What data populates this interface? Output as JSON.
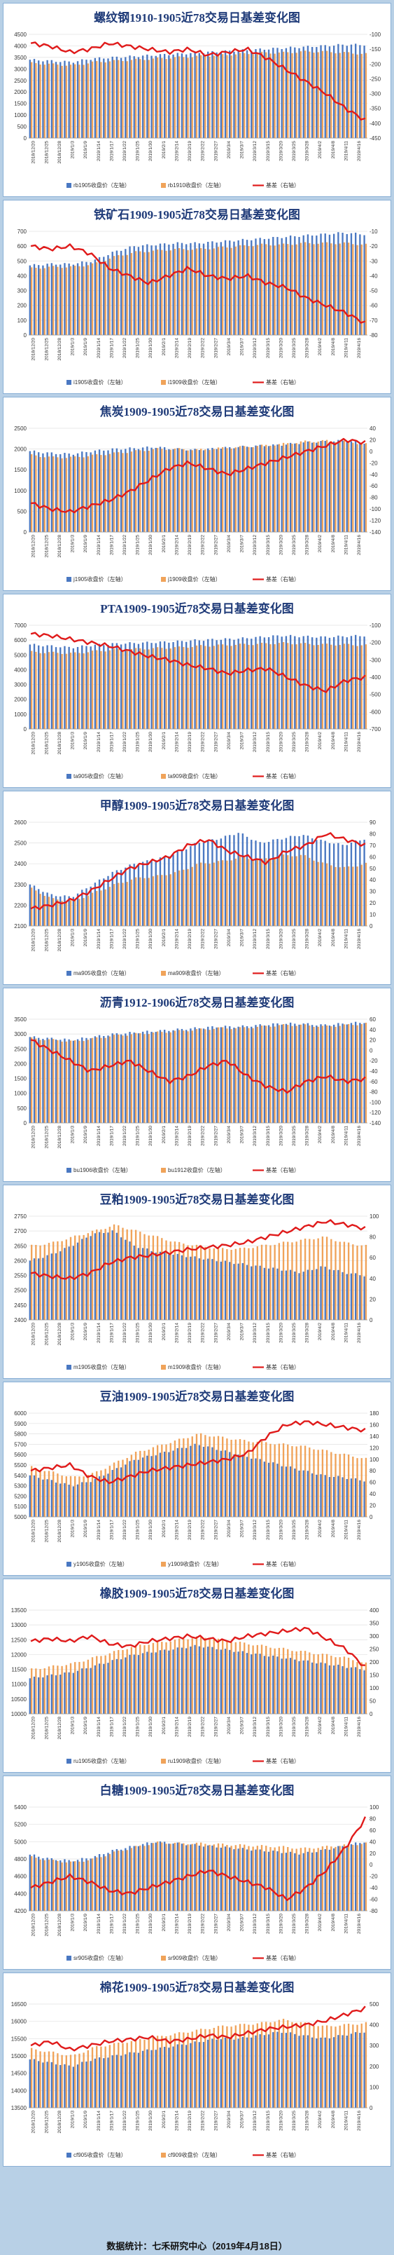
{
  "colors": {
    "bar1": "#4a78c2",
    "bar2": "#f0a35a",
    "line": "#e01a1a",
    "bg": "#b8d0e6"
  },
  "footer": "数据统计：七禾研究中心（2019年4月18日）",
  "dates": [
    "2018/12/20",
    "2018/12/25",
    "2018/12/28",
    "2019/1/3",
    "2019/1/9",
    "2019/1/14",
    "2019/1/17",
    "2019/1/22",
    "2019/1/25",
    "2019/1/30",
    "2019/2/1",
    "2019/2/14",
    "2019/2/19",
    "2019/2/22",
    "2019/2/27",
    "2019/3/4",
    "2019/3/7",
    "2019/3/12",
    "2019/3/15",
    "2019/3/20",
    "2019/3/25",
    "2019/3/28",
    "2019/4/2",
    "2019/4/8",
    "2019/4/11",
    "2019/4/16"
  ],
  "chart_data": [
    {
      "type": "bar",
      "title": "螺纹钢1910-1905近78交易日基差变化图",
      "ylim_left": [
        0,
        4500
      ],
      "left_ticks": [
        0,
        500,
        1000,
        1500,
        2000,
        2500,
        3000,
        3500,
        4000,
        4500
      ],
      "ylim_right": [
        -450,
        -100
      ],
      "right_ticks": [
        -100,
        -150,
        -200,
        -250,
        -300,
        -350,
        -400,
        -450
      ],
      "series": [
        {
          "name": "rb1905收盘价（左轴）",
          "anchors": [
            3400,
            3350,
            3300,
            3450,
            3500,
            3550,
            3600,
            3650,
            3700,
            3750,
            3800,
            3850,
            3900,
            3950,
            4000,
            4050,
            4050
          ]
        },
        {
          "name": "rb1910收盘价（左轴）",
          "anchors": [
            3250,
            3200,
            3150,
            3300,
            3350,
            3400,
            3450,
            3500,
            3550,
            3600,
            3650,
            3700,
            3700,
            3750,
            3750,
            3700,
            3650
          ]
        },
        {
          "name": "基差（右轴）",
          "anchors": [
            -130,
            -140,
            -160,
            -150,
            -130,
            -140,
            -150,
            -160,
            -150,
            -170,
            -160,
            -150,
            -180,
            -220,
            -260,
            -300,
            -350,
            -390
          ]
        }
      ]
    },
    {
      "type": "bar",
      "title": "铁矿石1909-1905近78交易日基差变化图",
      "ylim_left": [
        0,
        700
      ],
      "left_ticks": [
        0,
        100,
        200,
        300,
        400,
        500,
        600,
        700
      ],
      "ylim_right": [
        -80,
        -10
      ],
      "right_ticks": [
        -10,
        -20,
        -30,
        -40,
        -50,
        -60,
        -70,
        -80
      ],
      "series": [
        {
          "name": "i1905收盘价（左轴）",
          "anchors": [
            470,
            480,
            480,
            500,
            560,
            600,
            610,
            620,
            620,
            630,
            640,
            650,
            660,
            670,
            680,
            690,
            680
          ]
        },
        {
          "name": "i1909收盘价（左轴）",
          "anchors": [
            450,
            460,
            460,
            480,
            530,
            560,
            570,
            580,
            580,
            590,
            600,
            610,
            610,
            620,
            620,
            620,
            610
          ]
        },
        {
          "name": "基差（右轴）",
          "anchors": [
            -20,
            -22,
            -20,
            -25,
            -35,
            -40,
            -45,
            -40,
            -35,
            -40,
            -42,
            -40,
            -45,
            -48,
            -55,
            -60,
            -65,
            -72
          ]
        }
      ]
    },
    {
      "type": "bar",
      "title": "焦炭1909-1905近78交易日基差变化图",
      "ylim_left": [
        0,
        2500
      ],
      "left_ticks": [
        0,
        500,
        1000,
        1500,
        2000,
        2500
      ],
      "ylim_right": [
        -140,
        40
      ],
      "right_ticks": [
        40,
        20,
        0,
        -20,
        -40,
        -60,
        -80,
        -100,
        -120,
        -140
      ],
      "series": [
        {
          "name": "j1905收盘价（左轴）",
          "anchors": [
            1950,
            1900,
            1880,
            1950,
            2000,
            2020,
            2050,
            2000,
            1980,
            2020,
            2050,
            2080,
            2100,
            2150,
            2180,
            2200,
            2150
          ]
        },
        {
          "name": "j1909收盘价（左轴）",
          "anchors": [
            1850,
            1800,
            1800,
            1850,
            1900,
            1950,
            2000,
            2000,
            1980,
            2020,
            2050,
            2080,
            2120,
            2180,
            2200,
            2180,
            2120
          ]
        },
        {
          "name": "基差（右轴）",
          "anchors": [
            -90,
            -100,
            -105,
            -95,
            -85,
            -70,
            -50,
            -30,
            -20,
            -30,
            -40,
            -30,
            -20,
            -10,
            0,
            10,
            20,
            15
          ]
        }
      ]
    },
    {
      "type": "bar",
      "title": "PTA1909-1905近78交易日基差变化图",
      "ylim_left": [
        0,
        7000
      ],
      "left_ticks": [
        0,
        1000,
        2000,
        3000,
        4000,
        5000,
        6000,
        7000
      ],
      "ylim_right": [
        -700,
        -100
      ],
      "right_ticks": [
        -100,
        -200,
        -300,
        -400,
        -500,
        -600,
        -700
      ],
      "series": [
        {
          "name": "ta905收盘价（左轴）",
          "anchors": [
            5700,
            5600,
            5500,
            5650,
            5750,
            5800,
            5850,
            5900,
            6000,
            6050,
            6100,
            6200,
            6300,
            6250,
            6200,
            6250,
            6300
          ]
        },
        {
          "name": "ta909收盘价（左轴）",
          "anchors": [
            5200,
            5150,
            5100,
            5250,
            5350,
            5400,
            5450,
            5500,
            5600,
            5650,
            5700,
            5750,
            5800,
            5750,
            5700,
            5700,
            5650
          ]
        },
        {
          "name": "基差（右轴）",
          "anchors": [
            -150,
            -160,
            -180,
            -200,
            -220,
            -250,
            -280,
            -300,
            -330,
            -350,
            -380,
            -360,
            -350,
            -400,
            -450,
            -480,
            -420,
            -400
          ]
        }
      ]
    },
    {
      "type": "bar",
      "title": "甲醇1909-1905近78交易日基差变化图",
      "ylim_left": [
        2100,
        2600
      ],
      "left_ticks": [
        2100,
        2200,
        2300,
        2400,
        2500,
        2600
      ],
      "ylim_right": [
        0,
        90
      ],
      "right_ticks": [
        90,
        80,
        70,
        60,
        50,
        40,
        30,
        20,
        10,
        0
      ],
      "series": [
        {
          "name": "ma905收盘价（左轴）",
          "anchors": [
            2300,
            2250,
            2240,
            2300,
            2360,
            2400,
            2420,
            2450,
            2500,
            2520,
            2550,
            2500,
            2520,
            2540,
            2510,
            2490,
            2520
          ]
        },
        {
          "name": "ma909收盘价（左轴）",
          "anchors": [
            2280,
            2230,
            2220,
            2260,
            2300,
            2330,
            2340,
            2360,
            2400,
            2410,
            2430,
            2420,
            2440,
            2440,
            2400,
            2380,
            2400
          ]
        },
        {
          "name": "基差（右轴）",
          "anchors": [
            15,
            18,
            22,
            30,
            40,
            50,
            55,
            60,
            70,
            75,
            65,
            60,
            55,
            65,
            70,
            80,
            75,
            70
          ]
        }
      ]
    },
    {
      "type": "bar",
      "title": "沥青1912-1906近78交易日基差变化图",
      "ylim_left": [
        0,
        3500
      ],
      "left_ticks": [
        0,
        500,
        1000,
        1500,
        2000,
        2500,
        3000,
        3500
      ],
      "ylim_right": [
        -140,
        60
      ],
      "right_ticks": [
        60,
        40,
        20,
        0,
        -20,
        -40,
        -60,
        -80,
        -100,
        -120,
        -140
      ],
      "series": [
        {
          "name": "bu1906收盘价（左轴）",
          "anchors": [
            2900,
            2850,
            2800,
            2900,
            3000,
            3050,
            3100,
            3150,
            3200,
            3250,
            3250,
            3300,
            3350,
            3350,
            3300,
            3350,
            3400
          ]
        },
        {
          "name": "bu1912收盘价（左轴）",
          "anchors": [
            2850,
            2800,
            2750,
            2850,
            2950,
            3000,
            3050,
            3100,
            3150,
            3200,
            3200,
            3250,
            3300,
            3300,
            3250,
            3300,
            3350
          ]
        },
        {
          "name": "基差（右轴）",
          "anchors": [
            20,
            0,
            -20,
            -40,
            -30,
            -20,
            -40,
            -60,
            -50,
            -30,
            -20,
            -50,
            -70,
            -80,
            -60,
            -50,
            -60,
            -55
          ]
        }
      ]
    },
    {
      "type": "bar",
      "title": "豆粕1909-1905近78交易日基差变化图",
      "ylim_left": [
        2400,
        2750
      ],
      "left_ticks": [
        2400,
        2450,
        2500,
        2550,
        2600,
        2650,
        2700,
        2750
      ],
      "ylim_right": [
        0,
        100
      ],
      "right_ticks": [
        100,
        80,
        60,
        40,
        20,
        0
      ],
      "series": [
        {
          "name": "m1905收盘价（左轴）",
          "anchors": [
            2600,
            2620,
            2650,
            2690,
            2700,
            2650,
            2630,
            2620,
            2610,
            2600,
            2590,
            2580,
            2570,
            2560,
            2580,
            2560,
            2550
          ]
        },
        {
          "name": "m1909收盘价（左轴）",
          "anchors": [
            2650,
            2660,
            2680,
            2700,
            2720,
            2700,
            2680,
            2660,
            2650,
            2640,
            2640,
            2650,
            2660,
            2670,
            2680,
            2660,
            2650
          ]
        },
        {
          "name": "基差（右轴）",
          "anchors": [
            45,
            42,
            40,
            45,
            55,
            60,
            62,
            65,
            68,
            70,
            72,
            75,
            80,
            85,
            90,
            95,
            92,
            88
          ]
        }
      ]
    },
    {
      "type": "bar",
      "title": "豆油1909-1905近78交易日基差变化图",
      "ylim_left": [
        5000,
        6000
      ],
      "left_ticks": [
        5000,
        5100,
        5200,
        5300,
        5400,
        5500,
        5600,
        5700,
        5800,
        5900,
        6000
      ],
      "ylim_right": [
        0,
        180
      ],
      "right_ticks": [
        180,
        160,
        140,
        120,
        100,
        80,
        60,
        40,
        20,
        0
      ],
      "series": [
        {
          "name": "y1905收盘价（左轴）",
          "anchors": [
            5400,
            5350,
            5300,
            5350,
            5450,
            5550,
            5600,
            5650,
            5700,
            5650,
            5600,
            5550,
            5500,
            5450,
            5400,
            5380,
            5350
          ]
        },
        {
          "name": "y1909收盘价（左轴）",
          "anchors": [
            5480,
            5430,
            5380,
            5420,
            5520,
            5620,
            5680,
            5740,
            5800,
            5770,
            5740,
            5720,
            5700,
            5680,
            5640,
            5600,
            5560
          ]
        },
        {
          "name": "基差（右轴）",
          "anchors": [
            80,
            85,
            90,
            70,
            60,
            70,
            80,
            85,
            90,
            95,
            100,
            110,
            140,
            160,
            165,
            160,
            155,
            150
          ]
        }
      ]
    },
    {
      "type": "bar",
      "title": "橡胶1909-1905近78交易日基差变化图",
      "ylim_left": [
        10000,
        13500
      ],
      "left_ticks": [
        10000,
        10500,
        11000,
        11500,
        12000,
        12500,
        13000,
        13500
      ],
      "ylim_right": [
        0,
        400
      ],
      "right_ticks": [
        400,
        350,
        300,
        250,
        200,
        150,
        100,
        50,
        0
      ],
      "series": [
        {
          "name": "ru1905收盘价（左轴）",
          "anchors": [
            11200,
            11300,
            11400,
            11600,
            11800,
            12000,
            12100,
            12200,
            12300,
            12200,
            12100,
            12000,
            11900,
            11800,
            11700,
            11600,
            11500
          ]
        },
        {
          "name": "ru1909收盘价（左轴）",
          "anchors": [
            11500,
            11600,
            11700,
            11900,
            12100,
            12300,
            12400,
            12500,
            12600,
            12500,
            12400,
            12300,
            12200,
            12100,
            12000,
            11900,
            11700
          ]
        },
        {
          "name": "基差（右轴）",
          "anchors": [
            280,
            290,
            280,
            300,
            270,
            260,
            280,
            290,
            300,
            290,
            280,
            300,
            310,
            320,
            330,
            290,
            250,
            180
          ]
        }
      ]
    },
    {
      "type": "bar",
      "title": "白糖1909-1905近78交易日基差变化图",
      "ylim_left": [
        4200,
        5400
      ],
      "left_ticks": [
        4200,
        4400,
        4600,
        4800,
        5000,
        5200,
        5400
      ],
      "ylim_right": [
        -80,
        100
      ],
      "right_ticks": [
        100,
        80,
        60,
        40,
        20,
        0,
        -20,
        -40,
        -60,
        -80
      ],
      "series": [
        {
          "name": "sr905收盘价（左轴）",
          "anchors": [
            4850,
            4800,
            4780,
            4820,
            4900,
            4950,
            5000,
            4980,
            4960,
            4940,
            4920,
            4900,
            4880,
            4860,
            4900,
            4950,
            5000
          ]
        },
        {
          "name": "sr909收盘价（左轴）",
          "anchors": [
            4820,
            4780,
            4760,
            4800,
            4880,
            4940,
            4990,
            4980,
            4980,
            4970,
            4960,
            4950,
            4940,
            4920,
            4940,
            4960,
            4980
          ]
        },
        {
          "name": "基差（右轴）",
          "anchors": [
            -40,
            -30,
            -20,
            -30,
            -45,
            -50,
            -40,
            -30,
            -20,
            -10,
            -20,
            -30,
            -40,
            -60,
            -40,
            -10,
            30,
            80
          ]
        }
      ]
    },
    {
      "type": "bar",
      "title": "棉花1909-1905近78交易日基差变化图",
      "ylim_left": [
        13500,
        16500
      ],
      "left_ticks": [
        13500,
        14000,
        14500,
        15000,
        15500,
        16000,
        16500
      ],
      "ylim_right": [
        0,
        500
      ],
      "right_ticks": [
        500,
        400,
        300,
        200,
        100,
        0
      ],
      "series": [
        {
          "name": "cf905收盘价（左轴）",
          "anchors": [
            14900,
            14800,
            14700,
            14900,
            15000,
            15100,
            15200,
            15300,
            15400,
            15500,
            15500,
            15600,
            15700,
            15600,
            15500,
            15600,
            15700
          ]
        },
        {
          "name": "cf909收盘价（左轴）",
          "anchors": [
            15200,
            15100,
            15000,
            15250,
            15350,
            15450,
            15550,
            15650,
            15750,
            15850,
            15900,
            15950,
            16050,
            15950,
            15850,
            15900,
            15950
          ]
        },
        {
          "name": "基差（右轴）",
          "anchors": [
            300,
            320,
            280,
            300,
            320,
            330,
            340,
            320,
            330,
            350,
            340,
            360,
            380,
            390,
            400,
            420,
            450,
            480
          ]
        }
      ]
    }
  ]
}
